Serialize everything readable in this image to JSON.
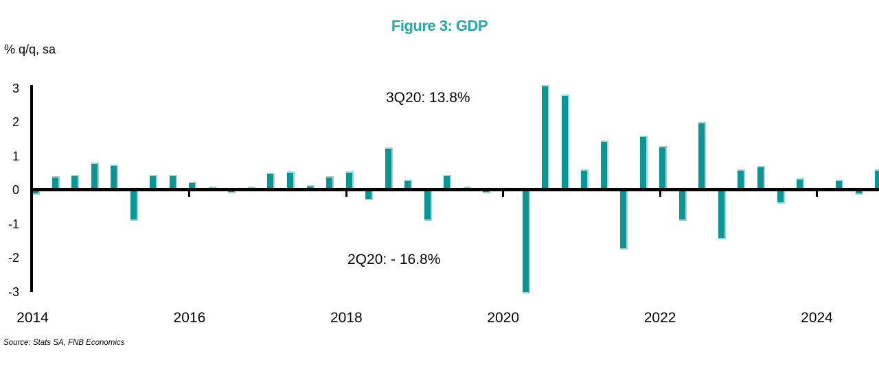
{
  "figure": {
    "title": "Figure 3: GDP",
    "y_axis_unit_label": "% q/q, sa",
    "source": "Source: Stats SA, FNB Economics",
    "annotations": {
      "peak": "3Q20: 13.8%",
      "trough": "2Q20: - 16.8%"
    }
  },
  "colors": {
    "bar_fill": "#0A9697",
    "bar_edge_light": "#9AD6D4",
    "title_teal": "#29A7AA",
    "axis": "#000000",
    "text": "#000000"
  },
  "chart_data": {
    "type": "bar",
    "title": "Figure 3: GDP",
    "xlabel": "",
    "ylabel": "% q/q, sa",
    "x": [
      "2014Q1",
      "2014Q2",
      "2014Q3",
      "2014Q4",
      "2015Q1",
      "2015Q2",
      "2015Q3",
      "2015Q4",
      "2016Q1",
      "2016Q2",
      "2016Q3",
      "2016Q4",
      "2017Q1",
      "2017Q2",
      "2017Q3",
      "2017Q4",
      "2018Q1",
      "2018Q2",
      "2018Q3",
      "2018Q4",
      "2019Q1",
      "2019Q2",
      "2019Q3",
      "2019Q4",
      "2020Q1",
      "2020Q2",
      "2020Q3",
      "2020Q4",
      "2021Q1",
      "2021Q2",
      "2021Q3",
      "2021Q4",
      "2022Q1",
      "2022Q2",
      "2022Q3",
      "2022Q4",
      "2023Q1",
      "2023Q2",
      "2023Q3",
      "2023Q4",
      "2024Q1",
      "2024Q2",
      "2024Q3",
      "2024Q4"
    ],
    "values": [
      -0.15,
      0.4,
      0.45,
      0.8,
      0.75,
      -0.9,
      0.45,
      0.45,
      0.25,
      0.1,
      -0.1,
      0.1,
      0.5,
      0.55,
      0.15,
      0.4,
      0.55,
      -0.3,
      1.25,
      0.3,
      -0.9,
      0.45,
      0.1,
      -0.1,
      -0.05,
      -16.8,
      13.8,
      2.8,
      0.6,
      1.45,
      -1.75,
      1.6,
      1.3,
      -0.9,
      2.0,
      -1.45,
      0.6,
      0.7,
      -0.4,
      0.35,
      0.05,
      0.3,
      -0.15,
      0.6
    ],
    "ylim": [
      -3,
      3
    ],
    "y_ticks": [
      3,
      2,
      1,
      0,
      -1,
      -2,
      -3
    ],
    "x_tick_labels": [
      "2014",
      "2016",
      "2018",
      "2020",
      "2022",
      "2024"
    ],
    "grid": false,
    "legend": null,
    "bars_clipped_at_ylim": {
      "2020Q2": -16.8,
      "2020Q3": 13.8
    },
    "annotations": [
      {
        "text": "3Q20: 13.8%",
        "refers_to": "2020Q3"
      },
      {
        "text": "2Q20: - 16.8%",
        "refers_to": "2020Q2"
      }
    ]
  }
}
